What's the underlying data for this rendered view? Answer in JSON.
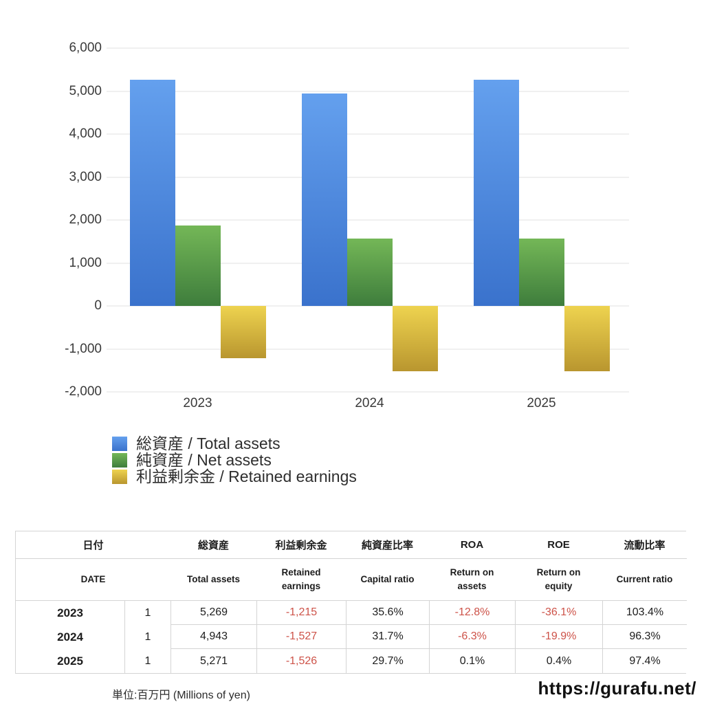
{
  "colors": {
    "bar_blue_top": "#64a0ee",
    "bar_blue_bottom": "#3a72cc",
    "bar_green_top": "#74b757",
    "bar_green_bottom": "#3e7d3c",
    "bar_yellow_top": "#eed34f",
    "bar_yellow_bottom": "#b9962f",
    "negative_red": "#cd5248",
    "gridline": "#f0f0f0",
    "table_border": "#d4d4d4"
  },
  "chart_data": {
    "type": "bar",
    "title": "",
    "categories": [
      "2023",
      "2024",
      "2025"
    ],
    "series": [
      {
        "name": "総資産 / Total assets",
        "slug": "total-assets",
        "color": "blue",
        "values": [
          5269,
          4943,
          5271
        ]
      },
      {
        "name": "純資産 / Net assets",
        "slug": "net-assets",
        "color": "green",
        "values": [
          1876,
          1567,
          1566
        ]
      },
      {
        "name": "利益剰余金 / Retained earnings",
        "slug": "retained-earnings",
        "color": "yellow",
        "values": [
          -1215,
          -1527,
          -1526
        ]
      }
    ],
    "ylim": [
      -2000,
      6000
    ],
    "y_ticks": [
      6000,
      5000,
      4000,
      3000,
      2000,
      1000,
      0,
      -1000,
      -2000
    ],
    "y_tick_labels": [
      "6,000",
      "5,000",
      "4,000",
      "3,000",
      "2,000",
      "1,000",
      "0",
      "-1,000",
      "-2,000"
    ],
    "grid": true,
    "legend_position": "below-left"
  },
  "table": {
    "header_ja": [
      "日付",
      "総資産",
      "利益剰余金",
      "純資産比率",
      "ROA",
      "ROE",
      "流動比率"
    ],
    "header_en": [
      "DATE",
      "Total assets",
      "Retained earnings",
      "Capital ratio",
      "Return on assets",
      "Return on equity",
      "Current ratio"
    ],
    "rows": [
      {
        "year": "2023",
        "month": "1",
        "values": [
          "5,269",
          "-1,215",
          "35.6%",
          "-12.8%",
          "-36.1%",
          "103.4%"
        ]
      },
      {
        "year": "2024",
        "month": "1",
        "values": [
          "4,943",
          "-1,527",
          "31.7%",
          "-6.3%",
          "-19.9%",
          "96.3%"
        ]
      },
      {
        "year": "2025",
        "month": "1",
        "values": [
          "5,271",
          "-1,526",
          "29.7%",
          "0.1%",
          "0.4%",
          "97.4%"
        ]
      }
    ]
  },
  "footer": {
    "unit_label": "単位:百万円 (Millions of yen)",
    "site_url": "https://gurafu.net/"
  }
}
